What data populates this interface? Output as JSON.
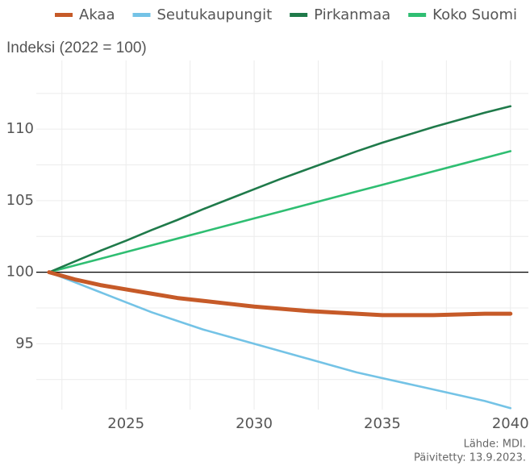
{
  "chart_data": {
    "type": "line",
    "y_label": "Indeksi (2022 = 100)",
    "x": [
      2022,
      2023,
      2024,
      2025,
      2026,
      2027,
      2028,
      2029,
      2030,
      2031,
      2032,
      2033,
      2034,
      2035,
      2036,
      2037,
      2038,
      2039,
      2040
    ],
    "series": [
      {
        "name": "Akaa",
        "color": "#c65a28",
        "values": [
          100,
          99.5,
          99.1,
          98.8,
          98.5,
          98.2,
          98.0,
          97.8,
          97.6,
          97.45,
          97.3,
          97.2,
          97.1,
          97.0,
          97.0,
          97.0,
          97.05,
          97.1,
          97.1
        ]
      },
      {
        "name": "Seutukaupungit",
        "color": "#74c3e6",
        "values": [
          100,
          99.3,
          98.6,
          97.9,
          97.2,
          96.6,
          96.0,
          95.5,
          95.0,
          94.5,
          94.0,
          93.5,
          93.0,
          92.6,
          92.2,
          91.8,
          91.4,
          91.0,
          90.5
        ]
      },
      {
        "name": "Pirkanmaa",
        "color": "#1f7a4a",
        "values": [
          100,
          100.75,
          101.5,
          102.2,
          102.95,
          103.65,
          104.4,
          105.1,
          105.8,
          106.5,
          107.15,
          107.8,
          108.45,
          109.05,
          109.6,
          110.15,
          110.65,
          111.15,
          111.6
        ]
      },
      {
        "name": "Koko Suomi",
        "color": "#2fbe72",
        "values": [
          100,
          100.47,
          100.94,
          101.41,
          101.88,
          102.35,
          102.82,
          103.29,
          103.76,
          104.23,
          104.7,
          105.17,
          105.64,
          106.11,
          106.58,
          107.05,
          107.52,
          107.99,
          108.46
        ]
      }
    ],
    "reference_line": 100,
    "xlim": [
      2021.5,
      2040.7
    ],
    "xticks": [
      2025,
      2030,
      2035,
      2040
    ],
    "ylim": [
      90.4,
      114.8
    ],
    "yticks": [
      95,
      100,
      105,
      110
    ],
    "grid": true,
    "legend": "top",
    "source": "Lähde: MDI.",
    "updated": "Päivitetty: 13.9.2023."
  }
}
